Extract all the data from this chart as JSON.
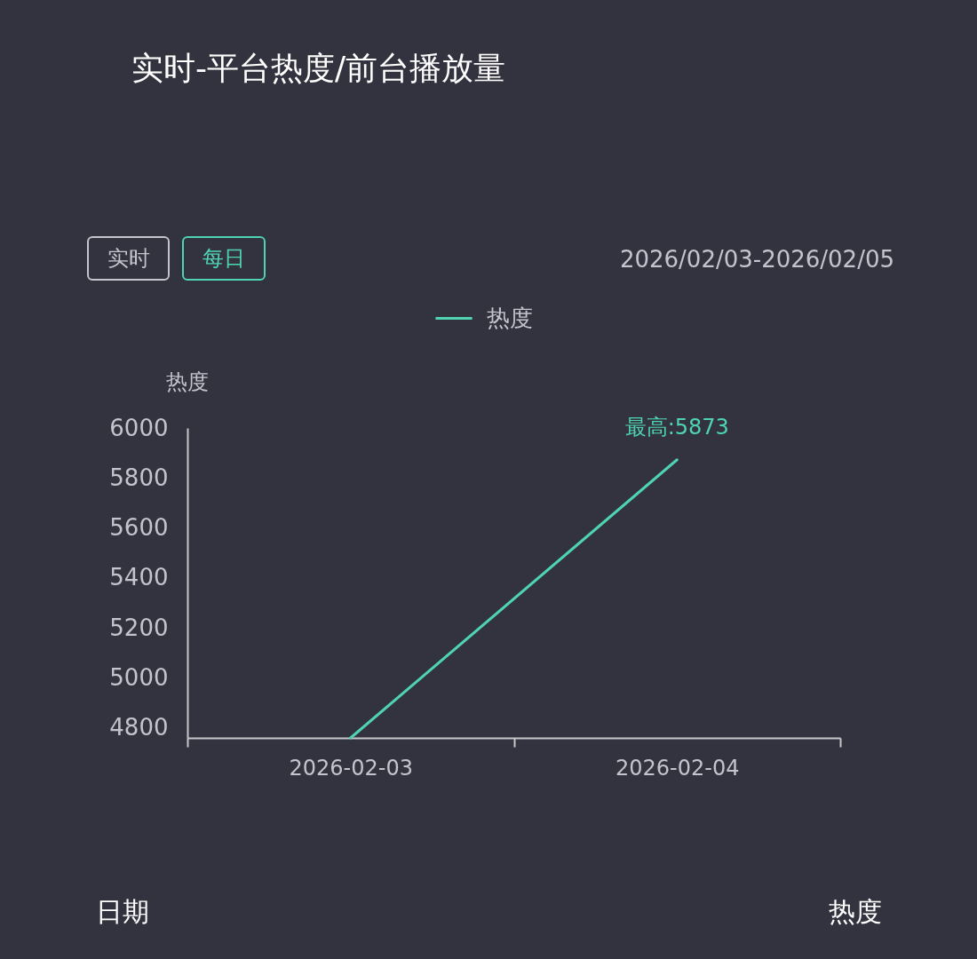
{
  "chart_data": {
    "type": "line",
    "title": "实时-平台热度/前台播放量",
    "categories": [
      "2026-02-03",
      "2026-02-04"
    ],
    "series": [
      {
        "name": "热度",
        "color": "#4fd4b1",
        "values": [
          4760,
          5873
        ]
      }
    ],
    "ylabel": "热度",
    "ylim": [
      4760,
      6000
    ],
    "yticks": [
      4800,
      5000,
      5200,
      5400,
      5600,
      5800,
      6000
    ],
    "grid": false,
    "legend": "top",
    "marker": "none",
    "annotations": [
      {
        "text": "最高:5873",
        "x": "2026-02-04",
        "y": 5873
      },
      "实时",
      "每日",
      "2026/02/03-2026/02/05",
      "日期",
      "热度"
    ]
  }
}
